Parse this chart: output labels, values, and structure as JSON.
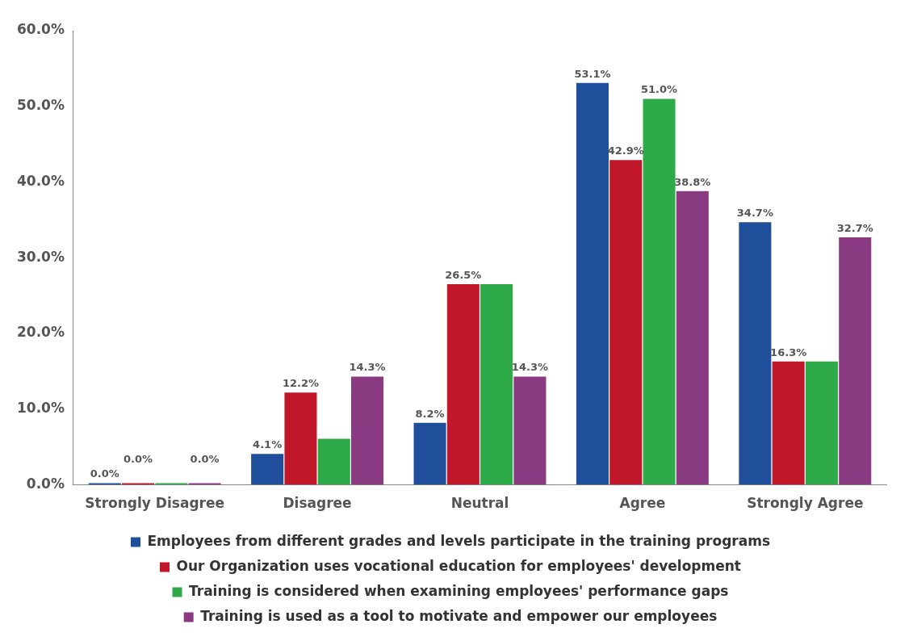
{
  "chart_data": {
    "type": "bar",
    "categories": [
      "Strongly Disagree",
      "Disagree",
      "Neutral",
      "Agree",
      "Strongly Agree"
    ],
    "series": [
      {
        "name": "Employees from different grades and levels participate in the training programs",
        "color": "#1f4e9a",
        "values": [
          0,
          4.1,
          8.2,
          53.1,
          34.7
        ],
        "value_labels": [
          "0.0%",
          "4.1%",
          "8.2%",
          "53.1%",
          "34.7%"
        ]
      },
      {
        "name": "Our Organization uses vocational education for employees' development",
        "color": "#c0182a",
        "values": [
          0,
          12.2,
          26.5,
          42.9,
          16.3
        ],
        "value_labels": [
          "0.0%",
          "12.2%",
          "26.5%",
          "42.9%",
          "16.3%"
        ]
      },
      {
        "name": "Training is considered when examining employees' performance gaps",
        "color": "#2eaa48",
        "values": [
          0,
          6.1,
          26.5,
          51.0,
          16.3
        ],
        "value_labels": [
          null,
          null,
          null,
          "51.0%",
          null
        ]
      },
      {
        "name": "Training is used as a tool to motivate and empower our employees",
        "color": "#8a3a80",
        "values": [
          0,
          14.3,
          14.3,
          38.8,
          32.7
        ],
        "value_labels": [
          "0.0%",
          "14.3%",
          "14.3%",
          "38.8%",
          "32.7%"
        ]
      }
    ],
    "ylim": [
      0,
      60
    ],
    "yticks": [
      {
        "value": 0,
        "label": "0.0%"
      },
      {
        "value": 10,
        "label": "10.0%"
      },
      {
        "value": 20,
        "label": "20.0%"
      },
      {
        "value": 30,
        "label": "30.0%"
      },
      {
        "value": 40,
        "label": "40.0%"
      },
      {
        "value": 50,
        "label": "50.0%"
      },
      {
        "value": 60,
        "label": "60.0%"
      }
    ],
    "grid": false,
    "legend": "bottom"
  }
}
